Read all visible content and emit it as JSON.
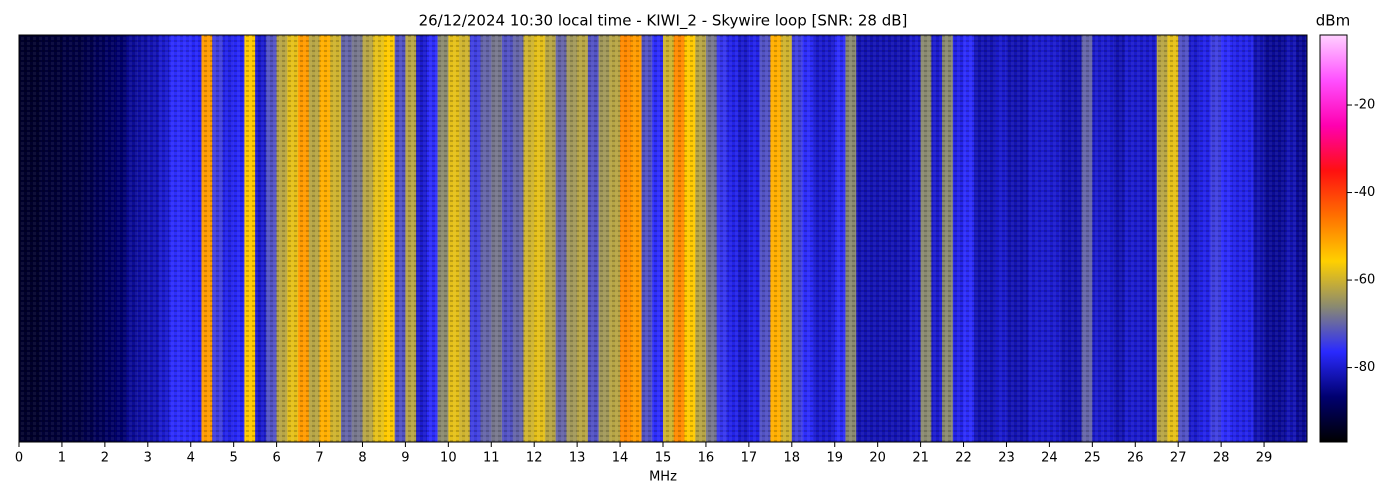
{
  "chart_data": {
    "type": "heatmap",
    "title": "26/12/2024 10:30 local time - KIWI_2 - Skywire loop [SNR: 28 dB]",
    "xlabel": "MHz",
    "colorbar_label": "dBm",
    "x": [
      0,
      0.25,
      0.5,
      0.75,
      1,
      1.25,
      1.5,
      1.75,
      2,
      2.25,
      2.5,
      2.75,
      3,
      3.25,
      3.5,
      3.75,
      4,
      4.25,
      4.5,
      4.75,
      5,
      5.25,
      5.5,
      5.75,
      6,
      6.25,
      6.5,
      6.75,
      7,
      7.25,
      7.5,
      7.75,
      8,
      8.25,
      8.5,
      8.75,
      9,
      9.25,
      9.5,
      9.75,
      10,
      10.25,
      10.5,
      10.75,
      11,
      11.25,
      11.5,
      11.75,
      12,
      12.25,
      12.5,
      12.75,
      13,
      13.25,
      13.5,
      13.75,
      14,
      14.25,
      14.5,
      14.75,
      15,
      15.25,
      15.5,
      15.75,
      16,
      16.25,
      16.5,
      16.75,
      17,
      17.25,
      17.5,
      17.75,
      18,
      18.25,
      18.5,
      18.75,
      19,
      19.25,
      19.5,
      19.75,
      20,
      20.25,
      20.5,
      20.75,
      21,
      21.25,
      21.5,
      21.75,
      22,
      22.25,
      22.5,
      22.75,
      23,
      23.25,
      23.5,
      23.75,
      24,
      24.25,
      24.5,
      24.75,
      25,
      25.25,
      25.5,
      25.75,
      26,
      26.25,
      26.5,
      26.75,
      27,
      27.25,
      27.5,
      27.75,
      28,
      28.25,
      28.5,
      28.75,
      29,
      29.25,
      29.5,
      29.75
    ],
    "values": [
      -93,
      -93,
      -92,
      -92,
      -91,
      -91,
      -90,
      -89,
      -88,
      -87,
      -84,
      -83,
      -82,
      -80,
      -76,
      -76,
      -77,
      -50,
      -74,
      -78,
      -77,
      -55,
      -80,
      -72,
      -62,
      -58,
      -50,
      -62,
      -52,
      -60,
      -70,
      -68,
      -62,
      -58,
      -55,
      -72,
      -62,
      -80,
      -76,
      -66,
      -58,
      -60,
      -74,
      -70,
      -68,
      -72,
      -70,
      -60,
      -58,
      -62,
      -70,
      -64,
      -62,
      -72,
      -64,
      -62,
      -48,
      -50,
      -72,
      -76,
      -60,
      -48,
      -55,
      -62,
      -68,
      -75,
      -78,
      -80,
      -78,
      -72,
      -52,
      -60,
      -74,
      -76,
      -80,
      -80,
      -76,
      -66,
      -82,
      -82,
      -82,
      -82,
      -82,
      -80,
      -66,
      -80,
      -66,
      -78,
      -76,
      -82,
      -82,
      -80,
      -82,
      -82,
      -80,
      -80,
      -80,
      -82,
      -82,
      -70,
      -80,
      -80,
      -82,
      -80,
      -80,
      -80,
      -62,
      -58,
      -72,
      -80,
      -78,
      -74,
      -76,
      -78,
      -78,
      -82,
      -84,
      -84,
      -82,
      -84
    ],
    "xlim": [
      0,
      30
    ],
    "xticks": [
      0,
      1,
      2,
      3,
      4,
      5,
      6,
      7,
      8,
      9,
      10,
      11,
      12,
      13,
      14,
      15,
      16,
      17,
      18,
      19,
      20,
      21,
      22,
      23,
      24,
      25,
      26,
      27,
      28,
      29
    ],
    "zlim": [
      -97,
      -4
    ],
    "zticks": [
      -20,
      -40,
      -60,
      -80
    ],
    "colors": [
      "#000000",
      "#000070",
      "#2a2aff",
      "#8a8a70",
      "#ffd000",
      "#ff7000",
      "#ff1010",
      "#ff00b0",
      "#ff50ff",
      "#ffd0ff"
    ]
  }
}
